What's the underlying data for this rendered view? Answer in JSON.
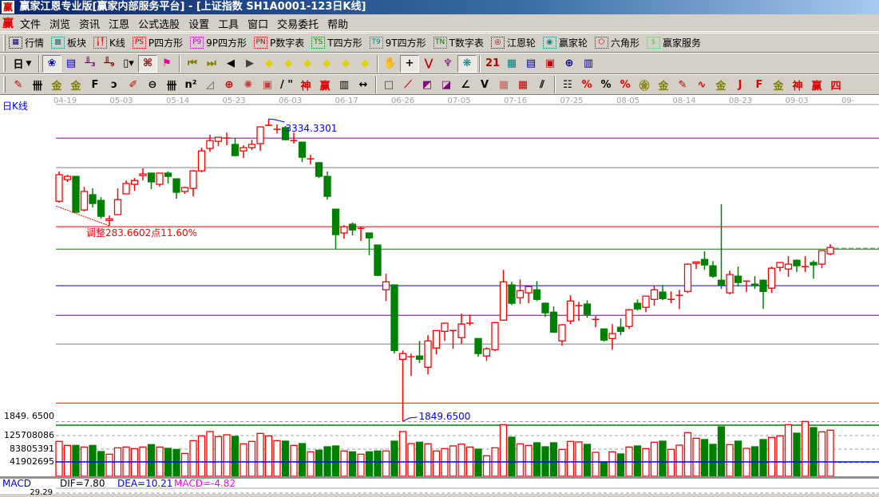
{
  "window": {
    "title": "赢家江恩专业版[赢家内部服务平台] - [上证指数   SH1A0001-123日K线]",
    "logo": "赢"
  },
  "menu": {
    "logo": "赢",
    "items": [
      "文件",
      "浏览",
      "资讯",
      "江恩",
      "公式选股",
      "设置",
      "工具",
      "窗口",
      "交易委托",
      "帮助"
    ]
  },
  "toolbar1": [
    {
      "icon": "quote-table-icon",
      "glyph": "▦",
      "color": "#000080",
      "label": "行情"
    },
    {
      "icon": "sector-blocks-icon",
      "glyph": "▩",
      "color": "#008080",
      "label": "板块"
    },
    {
      "icon": "kline-icon",
      "glyph": "╽╿",
      "color": "#e00000",
      "label": "K线"
    },
    {
      "icon": "ps-icon",
      "glyph": "PS",
      "color": "#c00000",
      "label": "P四方形"
    },
    {
      "icon": "p9-icon",
      "glyph": "P9",
      "color": "#c000c0",
      "label": "9P四方形"
    },
    {
      "icon": "pn-icon",
      "glyph": "PN",
      "color": "#c00000",
      "label": "P数字表"
    },
    {
      "icon": "ts-icon",
      "glyph": "TS",
      "color": "#008000",
      "label": "T四方形"
    },
    {
      "icon": "t9-icon",
      "glyph": "T9",
      "color": "#008080",
      "label": "9T四方形"
    },
    {
      "icon": "tn-icon",
      "glyph": "TN",
      "color": "#008000",
      "label": "T数字表"
    },
    {
      "icon": "gann-wheel-icon",
      "glyph": "◎",
      "color": "#800000",
      "label": "江恩轮"
    },
    {
      "icon": "winner-wheel-icon",
      "glyph": "◉",
      "color": "#008080",
      "label": "赢家轮"
    },
    {
      "icon": "hexagon-icon",
      "glyph": "⬡",
      "color": "#c00000",
      "label": "六角形"
    },
    {
      "icon": "dollar-service-icon",
      "glyph": "$",
      "color": "#60c060",
      "label": "赢家服务"
    }
  ],
  "toolbar2": {
    "period": "日",
    "groups": [
      [
        {
          "icon": "pattern-icon",
          "glyph": "❀",
          "color": "#0000c0",
          "sel": true
        },
        {
          "icon": "clipboard-icon",
          "glyph": "▤",
          "color": "#0000c0"
        },
        {
          "icon": "steps-3-icon",
          "glyph": "╨₃",
          "color": "#800080"
        },
        {
          "icon": "steps-9-icon",
          "glyph": "╨₉",
          "color": "#800000"
        },
        {
          "icon": "candle-dropdown-icon",
          "glyph": "▯▾",
          "color": "#000"
        },
        {
          "icon": "gann-pattern-icon",
          "glyph": "⌘",
          "color": "#800000",
          "sel": true
        },
        {
          "icon": "flag-icon",
          "glyph": "⚑",
          "color": "#e000a0"
        }
      ],
      [
        {
          "icon": "first-icon",
          "glyph": "⏮",
          "color": "#808000"
        },
        {
          "icon": "last-icon",
          "glyph": "⏭",
          "color": "#808000"
        },
        {
          "icon": "prev-icon",
          "glyph": "◀",
          "color": "#000"
        },
        {
          "icon": "next-icon",
          "glyph": "▶",
          "color": "#404040"
        },
        {
          "icon": "diamond-left-icon",
          "glyph": "◆",
          "color": "#e0d000"
        },
        {
          "icon": "diamond-right-icon",
          "glyph": "◆",
          "color": "#e0d000"
        },
        {
          "icon": "diamond-both-icon",
          "glyph": "◆",
          "color": "#e0d000"
        },
        {
          "icon": "diamond-in-icon",
          "glyph": "◆",
          "color": "#e0d000"
        },
        {
          "icon": "diamond-star-icon",
          "glyph": "◆",
          "color": "#e0d000"
        },
        {
          "icon": "diamond-cross-icon",
          "glyph": "◆",
          "color": "#e0d000"
        }
      ],
      [
        {
          "icon": "hand-icon",
          "glyph": "✋",
          "color": "#000"
        },
        {
          "icon": "crosshair-icon",
          "glyph": "+",
          "color": "#000",
          "sel": true
        },
        {
          "icon": "zigzag-icon",
          "glyph": "⋁",
          "color": "#c00000"
        },
        {
          "icon": "tree-icon",
          "glyph": "♆",
          "color": "#800080"
        },
        {
          "icon": "network-icon",
          "glyph": "❋",
          "color": "#008080",
          "sel": true
        }
      ],
      [
        {
          "icon": "calendar-icon",
          "glyph": "21",
          "color": "#c00000"
        },
        {
          "icon": "calculator-icon",
          "glyph": "▦",
          "color": "#008080"
        },
        {
          "icon": "notes-icon",
          "glyph": "▤",
          "color": "#000080"
        },
        {
          "icon": "save-icon",
          "glyph": "▣",
          "color": "#c00000"
        },
        {
          "icon": "globe-network-icon",
          "glyph": "⊕",
          "color": "#000080"
        },
        {
          "icon": "printer-icon",
          "glyph": "▥",
          "color": "#000080"
        }
      ]
    ]
  },
  "toolbar3": {
    "groups": [
      [
        {
          "icon": "pen-icon",
          "glyph": "✎",
          "color": "#c00000"
        },
        {
          "icon": "grid-lines-icon",
          "glyph": "卌",
          "color": "#000"
        },
        {
          "icon": "gold-1-icon",
          "glyph": "金",
          "color": "#808000"
        },
        {
          "icon": "gold-2-icon",
          "glyph": "金",
          "color": "#808000"
        },
        {
          "icon": "f-lines-icon",
          "glyph": "F",
          "color": "#000"
        },
        {
          "icon": "spiral-icon",
          "glyph": "ↄ",
          "color": "#000"
        },
        {
          "icon": "pen-ruler-icon",
          "glyph": "✐",
          "color": "#c00000"
        },
        {
          "icon": "circle-ruler-icon",
          "glyph": "⊖",
          "color": "#000"
        },
        {
          "icon": "parallel-lines-icon",
          "glyph": "卌",
          "color": "#000"
        },
        {
          "icon": "n-squared-icon",
          "glyph": "n²",
          "color": "#000"
        },
        {
          "icon": "triangle-icon",
          "glyph": "◿",
          "color": "#606060"
        },
        {
          "icon": "target-icon",
          "glyph": "⊕",
          "color": "#c00000"
        },
        {
          "icon": "web-icon",
          "glyph": "✺",
          "color": "#c04040"
        },
        {
          "icon": "square-web-icon",
          "glyph": "▣",
          "color": "#c04040"
        },
        {
          "icon": "slash-lines-icon",
          "glyph": "/ \"",
          "color": "#000"
        },
        {
          "icon": "shen-icon",
          "glyph": "神",
          "color": "#e00000"
        },
        {
          "icon": "ying-icon",
          "glyph": "赢",
          "color": "#e00000"
        },
        {
          "icon": "ruler-icon",
          "glyph": "▥",
          "color": "#000"
        },
        {
          "icon": "measure-icon",
          "glyph": "↔",
          "color": "#000"
        }
      ],
      [
        {
          "icon": "box-icon",
          "glyph": "□",
          "color": "#404040"
        },
        {
          "icon": "fan-red-icon",
          "glyph": "⟋",
          "color": "#e00000"
        },
        {
          "icon": "square-fan-icon",
          "glyph": "◩",
          "color": "#800080"
        },
        {
          "icon": "square-fan-2-icon",
          "glyph": "◪",
          "color": "#800080"
        },
        {
          "icon": "angle-icon",
          "glyph": "∠",
          "color": "#000"
        },
        {
          "icon": "v-icon",
          "glyph": "V",
          "color": "#000"
        },
        {
          "icon": "red-grid-icon",
          "glyph": "▦",
          "color": "#c06060"
        },
        {
          "icon": "grid-arrow-icon",
          "glyph": "▦",
          "color": "#c00000"
        },
        {
          "icon": "multi-slash-icon",
          "glyph": "⫽",
          "color": "#000"
        }
      ],
      [
        {
          "icon": "table-lines-icon",
          "glyph": "☷",
          "color": "#000"
        },
        {
          "icon": "percent-slope-icon",
          "glyph": "%",
          "color": "#e00000"
        },
        {
          "icon": "percent-icon",
          "glyph": "%",
          "color": "#000"
        },
        {
          "icon": "percent-lines-icon",
          "glyph": "%",
          "color": "#e00000"
        },
        {
          "icon": "gold-circle-icon",
          "glyph": "㊎",
          "color": "#808000"
        },
        {
          "icon": "gold-lines-icon",
          "glyph": "金",
          "color": "#808000"
        },
        {
          "icon": "pen-bars-icon",
          "glyph": "✎",
          "color": "#c00000"
        },
        {
          "icon": "wave-icon",
          "glyph": "∿",
          "color": "#e00000"
        },
        {
          "icon": "gold-box-icon",
          "glyph": "金",
          "color": "#808000"
        },
        {
          "icon": "j-angle-icon",
          "glyph": "J",
          "color": "#e00000"
        },
        {
          "icon": "f-angle-icon",
          "glyph": "F",
          "color": "#e00000"
        },
        {
          "icon": "gold-angle-icon",
          "glyph": "金",
          "color": "#808000"
        },
        {
          "icon": "shen-angle-icon",
          "glyph": "神",
          "color": "#e00000"
        },
        {
          "icon": "ying-angle-icon",
          "glyph": "赢",
          "color": "#e00000"
        },
        {
          "icon": "si-angle-icon",
          "glyph": "四",
          "color": "#e00000"
        }
      ]
    ]
  },
  "chart": {
    "period_label": "日K线",
    "colors": {
      "up": "#ff0000",
      "down": "#008000",
      "annotation": "#0000ff"
    }
  },
  "chart_data": {
    "type": "candlestick",
    "dates": [
      "04-19",
      "05-03",
      "05-14",
      "05-23",
      "06-03",
      "06-17",
      "06-26",
      "07-05",
      "07-16",
      "07-25",
      "08-05",
      "08-14",
      "08-23",
      "09-03",
      "09-"
    ],
    "ohlc": [
      [
        2930,
        3076,
        2923,
        3060
      ],
      [
        3036,
        3060,
        3025,
        3052
      ],
      [
        3052,
        3052,
        2876,
        2876
      ],
      [
        2887,
        3001,
        2880,
        2978
      ],
      [
        2962,
        2993,
        2899,
        2919
      ],
      [
        2934,
        2950,
        2844,
        2856
      ],
      [
        2836,
        2860,
        2809,
        2844
      ],
      [
        2864,
        2993,
        2864,
        2938
      ],
      [
        2966,
        3032,
        2966,
        3017
      ],
      [
        3013,
        3044,
        2981,
        3032
      ],
      [
        3056,
        3091,
        3032,
        3064
      ],
      [
        3068,
        3068,
        2989,
        3025
      ],
      [
        3013,
        3068,
        3001,
        3068
      ],
      [
        3068,
        3076,
        3017,
        3052
      ],
      [
        3040,
        3040,
        2942,
        2974
      ],
      [
        2978,
        3001,
        2966,
        2997
      ],
      [
        2993,
        3083,
        2954,
        3079
      ],
      [
        3079,
        3193,
        3072,
        3177
      ],
      [
        3189,
        3256,
        3173,
        3228
      ],
      [
        3224,
        3244,
        3201,
        3244
      ],
      [
        3240,
        3267,
        3205,
        3240
      ],
      [
        3209,
        3240,
        3150,
        3154
      ],
      [
        3177,
        3205,
        3142,
        3193
      ],
      [
        3193,
        3232,
        3181,
        3209
      ],
      [
        3213,
        3295,
        3177,
        3295
      ],
      [
        3303,
        3334.33,
        3299,
        3303
      ],
      [
        3283,
        3307,
        3263,
        3283
      ],
      [
        3291,
        3299,
        3228,
        3232
      ],
      [
        3228,
        3267,
        3213,
        3228
      ],
      [
        3220,
        3220,
        3123,
        3146
      ],
      [
        3138,
        3158,
        3111,
        3138
      ],
      [
        3119,
        3123,
        3044,
        3052
      ],
      [
        3052,
        3076,
        2938,
        2954
      ],
      [
        2891,
        2891,
        2695,
        2766
      ],
      [
        2774,
        2813,
        2746,
        2805
      ],
      [
        2817,
        2825,
        2762,
        2789
      ],
      [
        2797,
        2805,
        2735,
        2797
      ],
      [
        2774,
        2774,
        2664,
        2750
      ],
      [
        2715,
        2715,
        2562,
        2566
      ],
      [
        2495,
        2574,
        2440,
        2534
      ],
      [
        2519,
        2519,
        2182,
        2197
      ],
      [
        2154,
        2197,
        1849.65,
        2182
      ],
      [
        2166,
        2182,
        2072,
        2166
      ],
      [
        2170,
        2244,
        2135,
        2154
      ],
      [
        2115,
        2272,
        2080,
        2244
      ],
      [
        2209,
        2295,
        2178,
        2295
      ],
      [
        2291,
        2334,
        2244,
        2331
      ],
      [
        2295,
        2295,
        2205,
        2295
      ],
      [
        2260,
        2378,
        2229,
        2327
      ],
      [
        2331,
        2374,
        2319,
        2331
      ],
      [
        2256,
        2256,
        2166,
        2182
      ],
      [
        2170,
        2213,
        2146,
        2205
      ],
      [
        2201,
        2338,
        2193,
        2334
      ],
      [
        2346,
        2593,
        2346,
        2534
      ],
      [
        2519,
        2534,
        2421,
        2429
      ],
      [
        2456,
        2546,
        2425,
        2491
      ],
      [
        2480,
        2511,
        2429,
        2511
      ],
      [
        2495,
        2538,
        2440,
        2448
      ],
      [
        2429,
        2433,
        2362,
        2382
      ],
      [
        2385,
        2413,
        2284,
        2287
      ],
      [
        2244,
        2327,
        2221,
        2323
      ],
      [
        2342,
        2468,
        2327,
        2440
      ],
      [
        2417,
        2436,
        2342,
        2417
      ],
      [
        2425,
        2444,
        2358,
        2374
      ],
      [
        2350,
        2366,
        2311,
        2350
      ],
      [
        2303,
        2303,
        2240,
        2248
      ],
      [
        2256,
        2327,
        2201,
        2280
      ],
      [
        2311,
        2354,
        2272,
        2291
      ],
      [
        2315,
        2401,
        2303,
        2397
      ],
      [
        2429,
        2448,
        2393,
        2401
      ],
      [
        2409,
        2464,
        2385,
        2464
      ],
      [
        2448,
        2515,
        2417,
        2495
      ],
      [
        2484,
        2519,
        2444,
        2452
      ],
      [
        2448,
        2487,
        2429,
        2448
      ],
      [
        2468,
        2495,
        2401,
        2468
      ],
      [
        2487,
        2625,
        2480,
        2621
      ],
      [
        2625,
        2632,
        2597,
        2632
      ],
      [
        2644,
        2684,
        2593,
        2617
      ],
      [
        2613,
        2636,
        2554,
        2562
      ],
      [
        2542,
        2915,
        2499,
        2519
      ],
      [
        2480,
        2589,
        2472,
        2570
      ],
      [
        2562,
        2609,
        2511,
        2531
      ],
      [
        2538,
        2538,
        2484,
        2538
      ],
      [
        2523,
        2562,
        2499,
        2515
      ],
      [
        2542,
        2546,
        2401,
        2487
      ],
      [
        2503,
        2609,
        2480,
        2601
      ],
      [
        2605,
        2632,
        2585,
        2629
      ],
      [
        2597,
        2660,
        2558,
        2621
      ],
      [
        2640,
        2644,
        2582,
        2613
      ],
      [
        2609,
        2660,
        2582,
        2609
      ],
      [
        2629,
        2640,
        2550,
        2617
      ],
      [
        2621,
        2688,
        2601,
        2688
      ],
      [
        2672,
        2719,
        2664,
        2703
      ]
    ],
    "volume": [
      107700000,
      95300000,
      95300000,
      90400000,
      95300000,
      76400000,
      68200000,
      87900000,
      90400000,
      85500000,
      90400000,
      97800000,
      90400000,
      86300000,
      83000000,
      70700000,
      110100000,
      124900000,
      138100000,
      122400000,
      128200000,
      123300000,
      100300000,
      107700000,
      132300000,
      124900000,
      110100000,
      108500000,
      95300000,
      101100000,
      75600000,
      80500000,
      91200000,
      93700000,
      78100000,
      75600000,
      68200000,
      75600000,
      78100000,
      78100000,
      108500000,
      138100000,
      101100000,
      105200000,
      100300000,
      78100000,
      85500000,
      93700000,
      99400000,
      90400000,
      83800000,
      63300000,
      87900000,
      159400000,
      120800000,
      100300000,
      95300000,
      103500000,
      91200000,
      103500000,
      83000000,
      107700000,
      106000000,
      98600000,
      74000000,
      44400000,
      75600000,
      69000000,
      90400000,
      93700000,
      85500000,
      105200000,
      108500000,
      83000000,
      96100000,
      134800000,
      117500000,
      113400000,
      98600000,
      152800000,
      97800000,
      108500000,
      86300000,
      91200000,
      113400000,
      120000000,
      124900000,
      159400000,
      133100000,
      169300000,
      150400000,
      137200000,
      142200000
    ],
    "price_lines": [
      {
        "price": 3240,
        "color": "#800080"
      },
      {
        "price": 3095,
        "color": "#808080"
      },
      {
        "price": 2805,
        "color": "#ff0000"
      },
      {
        "price": 2695,
        "color": "#008000"
      },
      {
        "price": 2515,
        "color": "#0000ff"
      },
      {
        "price": 2370,
        "color": "#800080"
      },
      {
        "price": 2229,
        "color": "#808080"
      },
      {
        "price": 1939,
        "color": "#ff0000"
      }
    ],
    "annotations": {
      "high_label": "3334.3301",
      "low_label": "1849.6500",
      "retrace_label": "调整283.6602点11.60%"
    },
    "price_axis_label": "1849. 6500",
    "volume_axis": {
      "ticks": [
        125708086,
        83805391,
        41902695
      ],
      "tick_labels": [
        "125708086",
        "83805391",
        "41902695"
      ]
    },
    "macd": {
      "title": "MACD",
      "dif": "DIF=7.80",
      "dea": "DEA=10.21",
      "macd": "MACD=-4.82",
      "axis_top": "29.29"
    }
  }
}
